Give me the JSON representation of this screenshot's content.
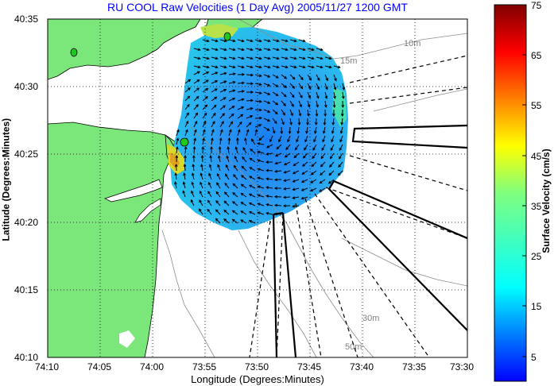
{
  "title": "RU COOL Raw Velocities (1 Day Avg) 2005/11/27 1200 GMT",
  "x_axis": {
    "label": "Longitude (Degrees:Minutes)",
    "ticks": [
      "74:10",
      "74:05",
      "74:00",
      "73:55",
      "73:50",
      "73:45",
      "73:40",
      "73:35",
      "73:30"
    ]
  },
  "y_axis": {
    "label": "Latitude (Degrees:Minutes)",
    "ticks": [
      "40:35",
      "40:30",
      "40:25",
      "40:20",
      "40:15",
      "40:10"
    ]
  },
  "colorbar": {
    "label": "Surface Velocity (cm/s)",
    "ticks": [
      "75",
      "65",
      "55",
      "45",
      "35",
      "25",
      "15",
      "5"
    ],
    "range": [
      0,
      75
    ],
    "colormap": "jet"
  },
  "contours": [
    "10m",
    "15m",
    "30m",
    "50m"
  ],
  "colors": {
    "land": "#7be77b",
    "title": "#0000ff",
    "station": "#1ec81e",
    "grid": "#000000"
  }
}
